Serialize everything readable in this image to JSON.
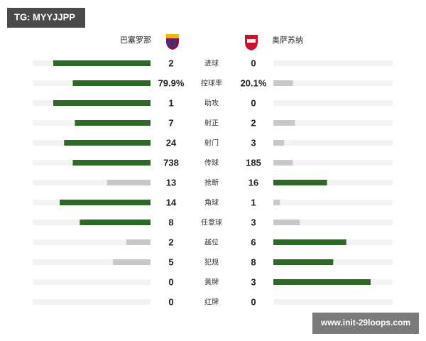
{
  "watermark": "TG: MYYJJPP",
  "home_team": "巴塞罗那",
  "away_team": "奥萨苏纳",
  "footer": "www.init-29loops.com",
  "colors": {
    "lead": "#2d6a25",
    "trail": "#c8c8c8",
    "track": "#f3f3f3"
  },
  "stats": [
    {
      "label": "进球",
      "home": 2,
      "away": 0
    },
    {
      "label": "控球率",
      "home": 79.9,
      "home_label": "79.9%",
      "away": 20.1,
      "away_label": "20.1%"
    },
    {
      "label": "助攻",
      "home": 1,
      "away": 0
    },
    {
      "label": "射正",
      "home": 7,
      "away": 2
    },
    {
      "label": "射门",
      "home": 24,
      "away": 3
    },
    {
      "label": "传球",
      "home": 738,
      "away": 185
    },
    {
      "label": "抢断",
      "home": 13,
      "away": 16
    },
    {
      "label": "角球",
      "home": 14,
      "away": 1
    },
    {
      "label": "任意球",
      "home": 8,
      "away": 3
    },
    {
      "label": "越位",
      "home": 2,
      "away": 6
    },
    {
      "label": "犯规",
      "home": 5,
      "away": 8
    },
    {
      "label": "黄牌",
      "home": 0,
      "away": 3
    },
    {
      "label": "红牌",
      "home": 0,
      "away": 0
    }
  ]
}
